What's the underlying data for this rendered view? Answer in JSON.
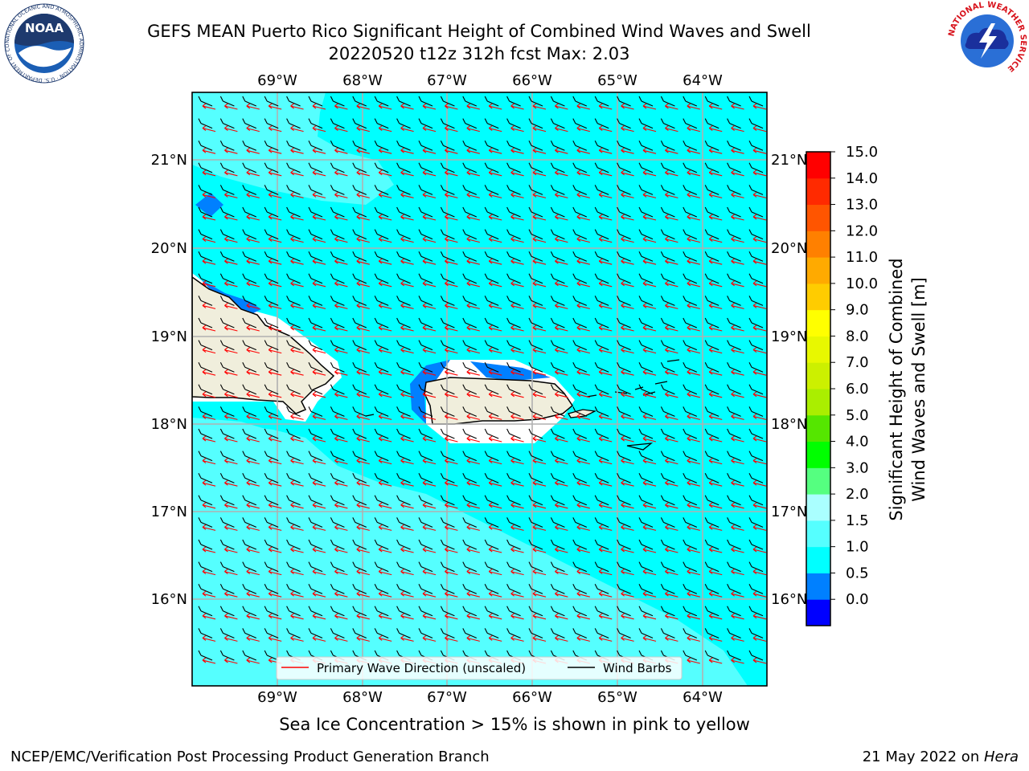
{
  "header": {
    "title_line1": "GEFS MEAN Puerto Rico Significant Height of Combined Wind Waves and Swell",
    "title_line2": "20220520 t12z 312h fcst   Max: 2.03"
  },
  "logos": {
    "noaa_icon": "noaa-logo",
    "noaa_text": "NOAA",
    "noaa_ring": "NATIONAL OCEANIC AND ATMOSPHERIC ADMINISTRATION · U.S. DEPARTMENT OF COMMERCE",
    "nws_icon": "nws-logo",
    "nws_ring": "NATIONAL WEATHER SERVICE"
  },
  "map": {
    "lon_labels": [
      "69°W",
      "68°W",
      "67°W",
      "66°W",
      "65°W",
      "64°W"
    ],
    "lat_labels": [
      "21°N",
      "20°N",
      "19°N",
      "18°N",
      "17°N",
      "16°N"
    ],
    "legend": {
      "wave_label": "Primary Wave Direction (unscaled)",
      "wind_label": "Wind Barbs",
      "wave_color": "#ff0000",
      "wind_color": "#000000"
    },
    "colors": {
      "ocean_1_1_5": "#00ffff",
      "ocean_1_5_2": "#55ffff",
      "ocean_0_5_1": "#0080ff",
      "land": "#f0eedc"
    }
  },
  "colorbar": {
    "label_line1": "Significant Height of Combined",
    "label_line2": "Wind Waves and Swell [m]",
    "ticks": [
      "15.0",
      "14.0",
      "13.0",
      "12.0",
      "11.0",
      "10.0",
      "9.0",
      "8.0",
      "7.0",
      "6.0",
      "5.0",
      "4.0",
      "3.0",
      "2.0",
      "1.5",
      "1.0",
      "0.5",
      "0.0"
    ],
    "colors": [
      "#0000ff",
      "#0080ff",
      "#00ffff",
      "#55ffff",
      "#aaffff",
      "#55ff80",
      "#00ff00",
      "#55e600",
      "#aaee00",
      "#ccf000",
      "#e8f800",
      "#ffff00",
      "#ffcc00",
      "#ffaa00",
      "#ff8000",
      "#ff5500",
      "#ff2a00",
      "#ff0000"
    ]
  },
  "notes": {
    "sea_ice": "Sea Ice Concentration > 15% is shown in pink to yellow",
    "credit": "NCEP/EMC/Verification Post Processing Product Generation Branch",
    "date": "21 May 2022 on ",
    "host": "Hera"
  }
}
